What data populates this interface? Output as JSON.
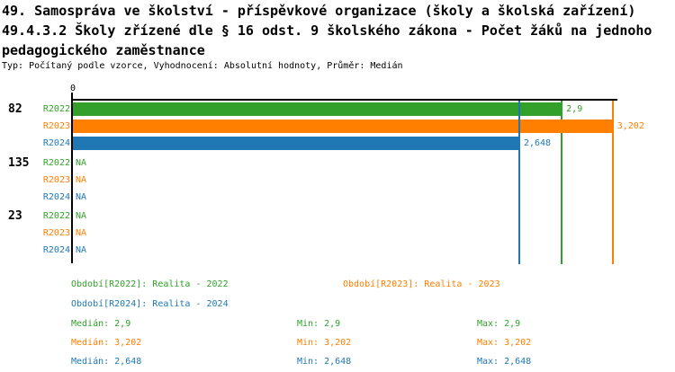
{
  "header": {
    "title_line1": "49. Samospráva ve školství - příspěvkové organizace (školy a školská zařízení)",
    "title_line2": "49.4.3.2 Školy zřízené dle § 16 odst. 9 školského zákona - Počet žáků na jednoho",
    "title_line3": "pedagogického zaměstnance",
    "subtitle": "Typ: Počítaný podle vzorce, Vyhodnocení: Absolutní hodnoty, Průměr: Medián"
  },
  "colors": {
    "axis": "#000000",
    "background": "#ffffff"
  },
  "chart_data": {
    "type": "bar",
    "orientation": "horizontal",
    "title": "49.4.3.2 Školy zřízené dle § 16 odst. 9 školského zákona - Počet žáků na jednoho pedagogického zaměstnance",
    "value_format": "czech decimal comma",
    "axis": {
      "min": 0,
      "origin_tick": "0"
    },
    "series": [
      "R2022",
      "R2023",
      "R2024"
    ],
    "series_colors": {
      "R2022": "#33a02c",
      "R2023": "#ff7f00",
      "R2024": "#1f78b4"
    },
    "groups": [
      {
        "label": "82",
        "rows": [
          {
            "series": "R2022",
            "value": 2.9,
            "display": "2,9"
          },
          {
            "series": "R2023",
            "value": 3.202,
            "display": "3,202"
          },
          {
            "series": "R2024",
            "value": 2.648,
            "display": "2,648"
          }
        ]
      },
      {
        "label": "135",
        "rows": [
          {
            "series": "R2022",
            "value": null,
            "display": "NA"
          },
          {
            "series": "R2023",
            "value": null,
            "display": "NA"
          },
          {
            "series": "R2024",
            "value": null,
            "display": "NA"
          }
        ]
      },
      {
        "label": "23",
        "rows": [
          {
            "series": "R2022",
            "value": null,
            "display": "NA"
          },
          {
            "series": "R2023",
            "value": null,
            "display": "NA"
          },
          {
            "series": "R2024",
            "value": null,
            "display": "NA"
          }
        ]
      }
    ],
    "stats_values": {
      "R2022": {
        "median": 2.9,
        "min": 2.9,
        "max": 2.9
      },
      "R2023": {
        "median": 3.202,
        "min": 3.202,
        "max": 3.202
      },
      "R2024": {
        "median": 2.648,
        "min": 2.648,
        "max": 2.648
      }
    }
  },
  "legend": {
    "periods": [
      {
        "series": "R2022",
        "text": "Období[R2022]: Realita - 2022"
      },
      {
        "series": "R2023",
        "text": "Období[R2023]: Realita - 2023"
      },
      {
        "series": "R2024",
        "text": "Období[R2024]: Realita - 2024"
      }
    ],
    "stats": [
      {
        "series": "R2022",
        "median": "Medián: 2,9",
        "min": "Min: 2,9",
        "max": "Max: 2,9"
      },
      {
        "series": "R2023",
        "median": "Medián: 3,202",
        "min": "Min: 3,202",
        "max": "Max: 3,202"
      },
      {
        "series": "R2024",
        "median": "Medián: 2,648",
        "min": "Min: 2,648",
        "max": "Max: 2,648"
      }
    ]
  }
}
